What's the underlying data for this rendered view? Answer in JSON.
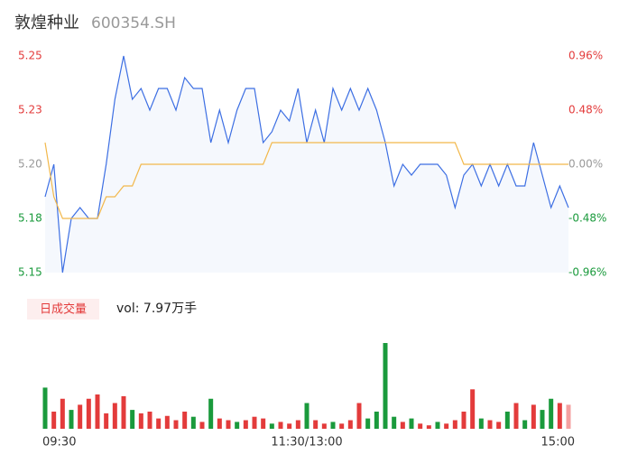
{
  "chart_data": {
    "type": "stock-intraday",
    "title": "敦煌种业",
    "subtitle": "600354.SH",
    "categories": [
      "09:30",
      null,
      null,
      null,
      null,
      null,
      null,
      null,
      null,
      null,
      null,
      null,
      null,
      null,
      null,
      null,
      null,
      null,
      null,
      null,
      null,
      null,
      null,
      null,
      null,
      null,
      null,
      null,
      null,
      null,
      "11:30/13:00",
      null,
      null,
      null,
      null,
      null,
      null,
      null,
      null,
      null,
      null,
      null,
      null,
      null,
      null,
      null,
      null,
      null,
      null,
      null,
      null,
      null,
      null,
      null,
      null,
      null,
      null,
      null,
      null,
      null,
      "15:00"
    ],
    "series": [
      {
        "name": "price",
        "color": "#3d6fe3",
        "values": [
          5.185,
          5.2,
          5.15,
          5.175,
          5.18,
          5.175,
          5.175,
          5.2,
          5.23,
          5.25,
          5.23,
          5.235,
          5.225,
          5.235,
          5.235,
          5.225,
          5.24,
          5.235,
          5.235,
          5.21,
          5.225,
          5.21,
          5.225,
          5.235,
          5.235,
          5.21,
          5.215,
          5.225,
          5.22,
          5.235,
          5.21,
          5.225,
          5.21,
          5.235,
          5.225,
          5.235,
          5.225,
          5.235,
          5.225,
          5.21,
          5.19,
          5.2,
          5.195,
          5.2,
          5.2,
          5.2,
          5.195,
          5.18,
          5.195,
          5.2,
          5.19,
          5.2,
          5.19,
          5.2,
          5.19,
          5.19,
          5.21,
          5.195,
          5.18,
          5.19,
          5.18
        ]
      },
      {
        "name": "average",
        "color": "#f2b84b",
        "values": [
          5.21,
          5.185,
          5.175,
          5.175,
          5.175,
          5.175,
          5.175,
          5.185,
          5.185,
          5.19,
          5.19,
          5.2,
          5.2,
          5.2,
          5.2,
          5.2,
          5.2,
          5.2,
          5.2,
          5.2,
          5.2,
          5.2,
          5.2,
          5.2,
          5.2,
          5.2,
          5.21,
          5.21,
          5.21,
          5.21,
          5.21,
          5.21,
          5.21,
          5.21,
          5.21,
          5.21,
          5.21,
          5.21,
          5.21,
          5.21,
          5.21,
          5.21,
          5.21,
          5.21,
          5.21,
          5.21,
          5.21,
          5.21,
          5.2,
          5.2,
          5.2,
          5.2,
          5.2,
          5.2,
          5.2,
          5.2,
          5.2,
          5.2,
          5.2,
          5.2,
          5.2
        ]
      }
    ],
    "ylim": [
      5.15,
      5.25
    ],
    "yticks": [
      5.25,
      {
        "value": 5.225,
        "label": "5.23"
      },
      {
        "value": 5.2,
        "label": "5.20"
      },
      {
        "value": 5.175,
        "label": "5.18"
      },
      5.15
    ],
    "y2lim": [
      -0.96,
      0.96
    ],
    "y2ticks": [
      {
        "value": 0.96,
        "label": "0.96%"
      },
      {
        "value": 0.48,
        "label": "0.48%"
      },
      {
        "value": 0,
        "label": "0.00%"
      },
      {
        "value": -0.48,
        "label": "-0.48%"
      },
      {
        "value": -0.96,
        "label": "-0.96%"
      }
    ],
    "volume_label": "日成交量",
    "volume_text": "vol: 7.97万手",
    "volume": {
      "ylim": [
        0,
        100
      ],
      "values": [
        48,
        20,
        35,
        22,
        28,
        35,
        40,
        18,
        30,
        38,
        22,
        18,
        20,
        12,
        15,
        10,
        20,
        14,
        8,
        35,
        12,
        10,
        8,
        10,
        14,
        12,
        6,
        8,
        6,
        10,
        30,
        10,
        6,
        8,
        6,
        10,
        30,
        12,
        20,
        100,
        14,
        8,
        12,
        6,
        4,
        8,
        6,
        10,
        20,
        46,
        12,
        10,
        8,
        20,
        30,
        10,
        28,
        22,
        35,
        30,
        28
      ],
      "colors": [
        "#1a9a3c",
        "#e33b3b",
        "#e33b3b",
        "#1a9a3c",
        "#e33b3b",
        "#e33b3b",
        "#e33b3b",
        "#e33b3b",
        "#e33b3b",
        "#e33b3b",
        "#1a9a3c",
        "#e33b3b",
        "#e33b3b",
        "#e33b3b",
        "#e33b3b",
        "#e33b3b",
        "#e33b3b",
        "#1a9a3c",
        "#e33b3b",
        "#1a9a3c",
        "#e33b3b",
        "#e33b3b",
        "#1a9a3c",
        "#e33b3b",
        "#e33b3b",
        "#e33b3b",
        "#1a9a3c",
        "#e33b3b",
        "#e33b3b",
        "#e33b3b",
        "#1a9a3c",
        "#e33b3b",
        "#e33b3b",
        "#1a9a3c",
        "#e33b3b",
        "#e33b3b",
        "#e33b3b",
        "#1a9a3c",
        "#1a9a3c",
        "#1a9a3c",
        "#1a9a3c",
        "#e33b3b",
        "#1a9a3c",
        "#e33b3b",
        "#e33b3b",
        "#1a9a3c",
        "#e33b3b",
        "#e33b3b",
        "#e33b3b",
        "#e33b3b",
        "#1a9a3c",
        "#e33b3b",
        "#e33b3b",
        "#1a9a3c",
        "#e33b3b",
        "#1a9a3c",
        "#e33b3b",
        "#1a9a3c",
        "#1a9a3c",
        "#e33b3b",
        "#f4a0a0"
      ]
    }
  }
}
